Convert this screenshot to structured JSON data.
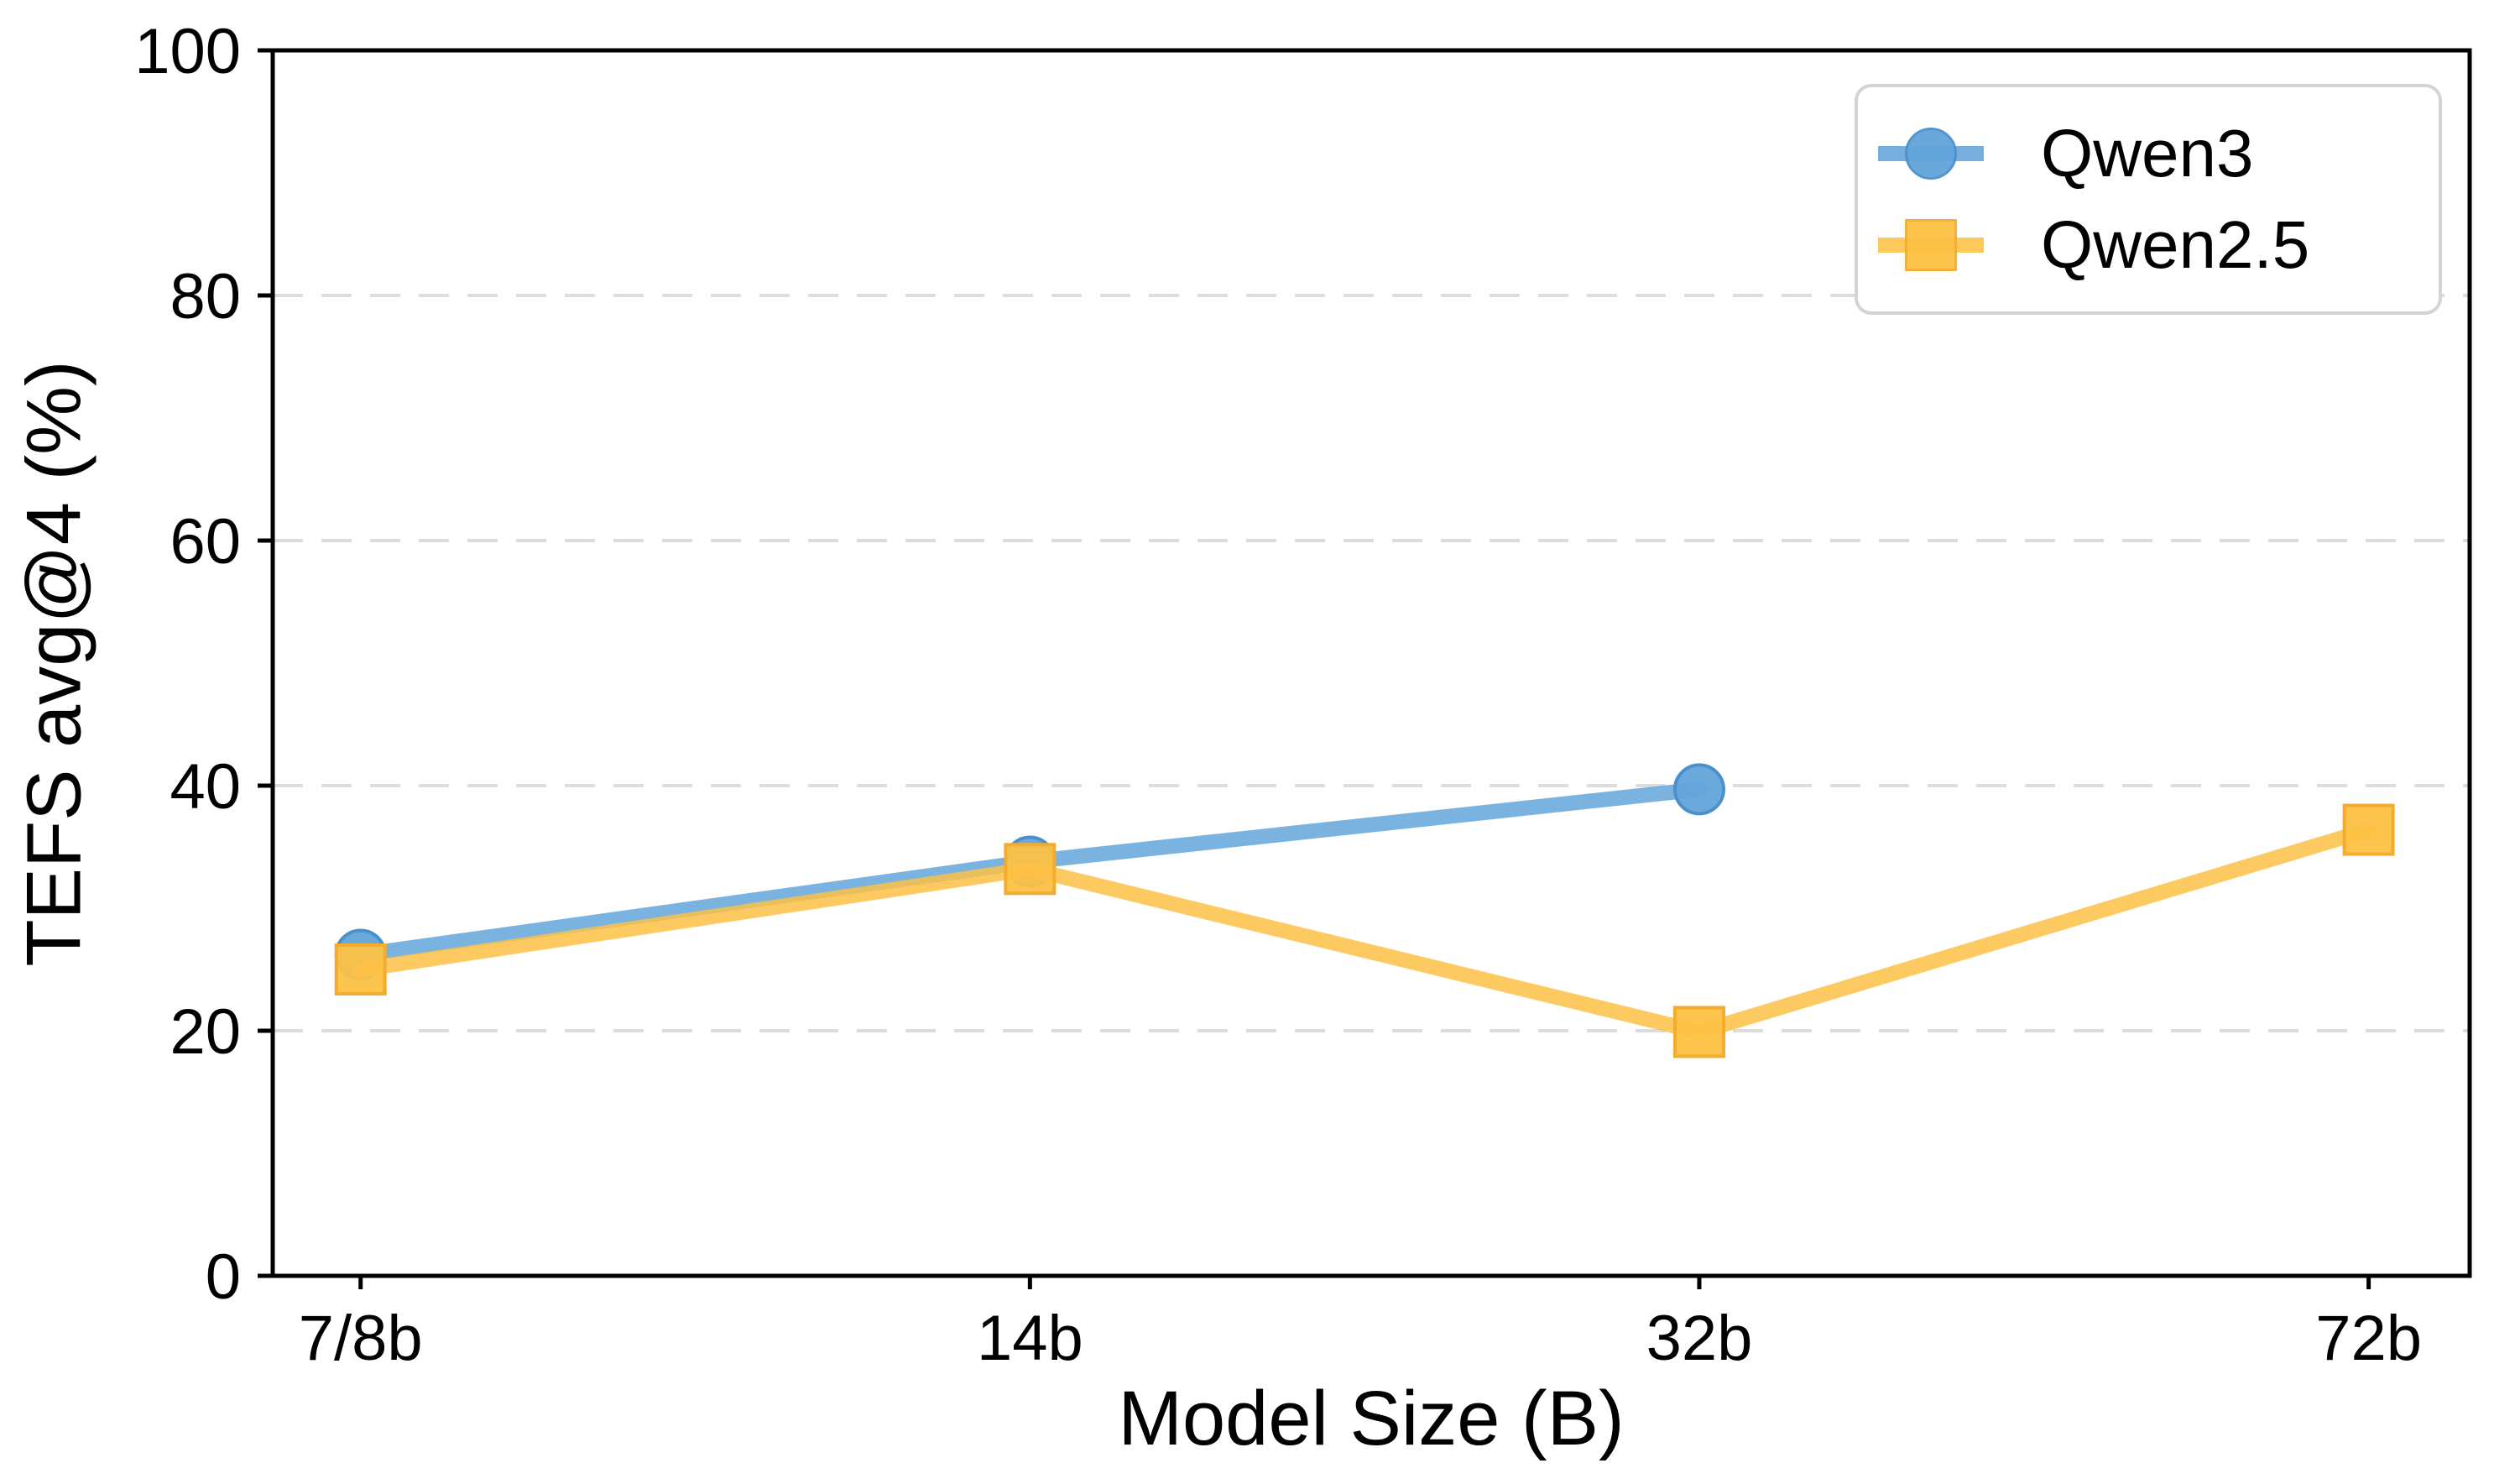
{
  "chart_data": {
    "type": "line",
    "title": "",
    "xlabel": "Model Size (B)",
    "ylabel": "TEFS avg@4 (%)",
    "categories": [
      "7/8b",
      "14b",
      "32b",
      "72b"
    ],
    "ylim": [
      0,
      100
    ],
    "yticks": [
      0,
      20,
      40,
      60,
      80,
      100
    ],
    "grid": "horizontal-dashed",
    "gridline_color": "#dcdcdc",
    "legend_position": "upper right",
    "series": [
      {
        "name": "Qwen3",
        "marker": "circle",
        "color": "#63a4da",
        "edge_color": "#4a90cc",
        "x": [
          0,
          1,
          2
        ],
        "values": [
          26.2,
          33.8,
          39.7
        ]
      },
      {
        "name": "Qwen2.5",
        "marker": "square",
        "color": "#fdc145",
        "edge_color": "#f4ac2e",
        "x": [
          0,
          1,
          2,
          3
        ],
        "values": [
          25.0,
          33.2,
          19.9,
          36.4
        ]
      }
    ]
  }
}
